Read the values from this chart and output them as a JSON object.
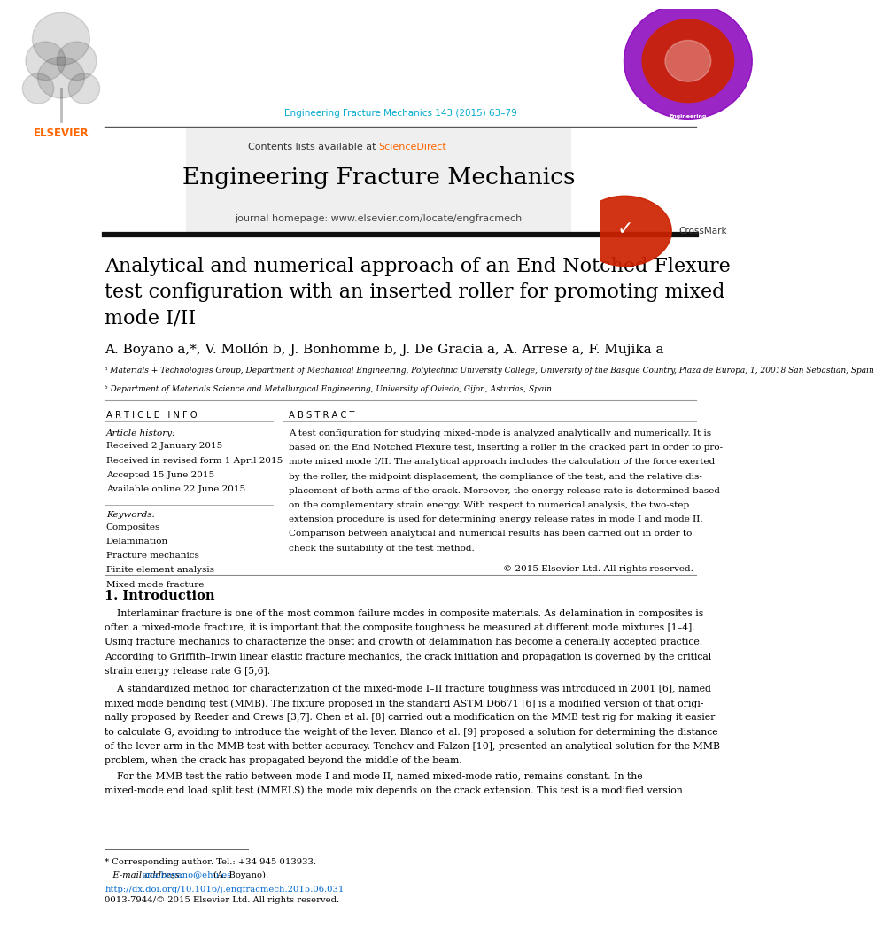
{
  "page_width": 9.07,
  "page_height": 12.38,
  "bg_color": "#ffffff",
  "journal_ref": "Engineering Fracture Mechanics 143 (2015) 63–79",
  "journal_ref_color": "#00aacc",
  "header_title": "Engineering Fracture Mechanics",
  "header_subtitle": "Contents lists available at",
  "header_sciencedirect_color": "#ff6600",
  "header_homepage": "journal homepage: www.elsevier.com/locate/engfracmech",
  "article_title": "Analytical and numerical approach of an End Notched Flexure\ntest configuration with an inserted roller for promoting mixed\nmode I/II",
  "authors_line": "A. Boyano a,*, V. Mollón b, J. Bonhomme b, J. De Gracia a, A. Arrese a, F. Mujika a",
  "affil_a": "ᵃ Materials + Technologies Group, Department of Mechanical Engineering, Polytechnic University College, University of the Basque Country, Plaza de Europa, 1, 20018 San Sebastian, Spain",
  "affil_b": "ᵇ Department of Materials Science and Metallurgical Engineering, University of Oviedo, Gijon, Asturias, Spain",
  "section_article_info": "ARTICLE INFO",
  "section_abstract": "ABSTRACT",
  "article_history_label": "Article history:",
  "history_lines": [
    "Received 2 January 2015",
    "Received in revised form 1 April 2015",
    "Accepted 15 June 2015",
    "Available online 22 June 2015"
  ],
  "keywords_label": "Keywords:",
  "keywords": [
    "Composites",
    "Delamination",
    "Fracture mechanics",
    "Finite element analysis",
    "Mixed mode fracture"
  ],
  "abstract_text": "A test configuration for studying mixed-mode is analyzed analytically and numerically. It is based on the End Notched Flexure test, inserting a roller in the cracked part in order to promote mixed mode I/II. The analytical approach includes the calculation of the force exerted by the roller, the midpoint displacement, the compliance of the test, and the relative displacement of both arms of the crack. Moreover, the energy release rate is determined based on the complementary strain energy. With respect to numerical analysis, the two-step extension procedure is used for determining energy release rates in mode I and mode II. Comparison between analytical and numerical results has been carried out in order to check the suitability of the test method.",
  "copyright": "© 2015 Elsevier Ltd. All rights reserved.",
  "intro_heading": "1. Introduction",
  "intro_p1": "    Interlaminar fracture is one of the most common failure modes in composite materials. As delamination in composites is often a mixed-mode fracture, it is important that the composite toughness be measured at different mode mixtures [1–4]. Using fracture mechanics to characterize the onset and growth of delamination has become a generally accepted practice. According to Griffith–Irwin linear elastic fracture mechanics, the crack initiation and propagation is governed by the critical strain energy release rate G [5,6].",
  "intro_p2": "    A standardized method for characterization of the mixed-mode I–II fracture toughness was introduced in 2001 [6], named mixed mode bending test (MMB). The fixture proposed in the standard ASTM D6671 [6] is a modified version of that originally proposed by Reeder and Crews [3,7]. Chen et al. [8] carried out a modification on the MMB test rig for making it easier to calculate G, avoiding to introduce the weight of the lever. Blanco et al. [9] proposed a solution for determining the distance of the lever arm in the MMB test with better accuracy. Tenchev and Falzon [10], presented an analytical solution for the MMB problem, when the crack has propagated beyond the middle of the beam.",
  "intro_p3": "    For the MMB test the ratio between mode I and mode II, named mixed-mode ratio, remains constant. In the mixed-mode end load split test (MMELS) the mode mix depends on the crack extension. This test is a modified version",
  "footnote_corresponding": "* Corresponding author. Tel.: +34 945 013933.",
  "footnote_email_label": "E-mail address: ",
  "footnote_email": "ana.boyano@ehu.es",
  "footnote_email_suffix": " (A. Boyano).",
  "footnote_doi": "http://dx.doi.org/10.1016/j.engfracmech.2015.06.031",
  "footnote_issn": "0013-7944/© 2015 Elsevier Ltd. All rights reserved.",
  "link_color": "#0066cc",
  "text_color": "#000000"
}
